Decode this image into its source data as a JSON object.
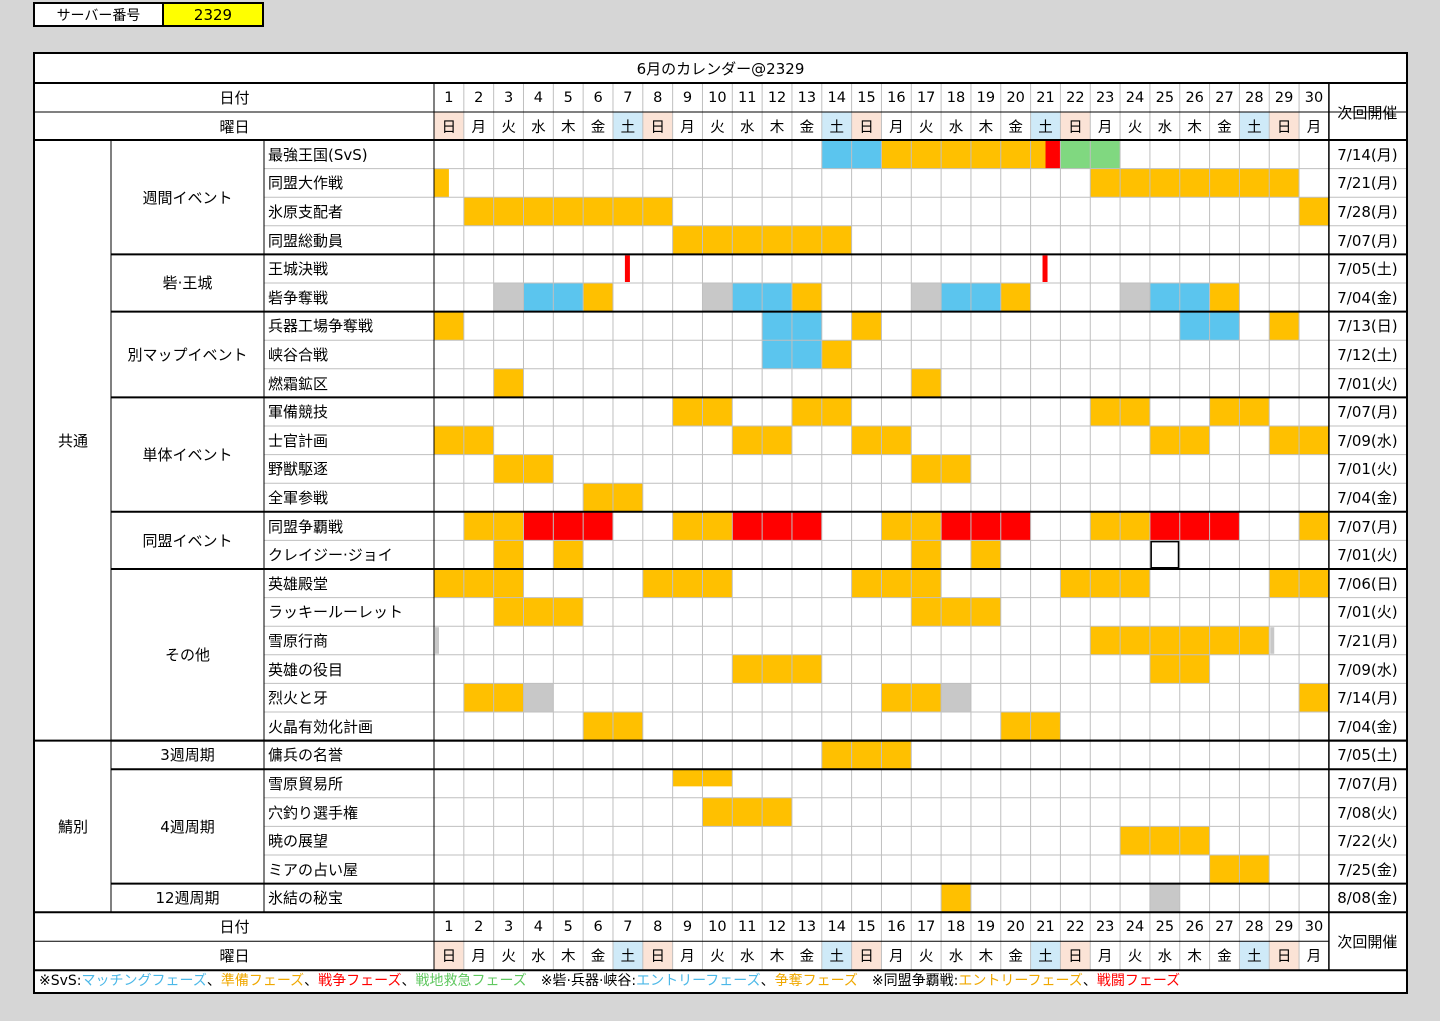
{
  "server": {
    "label": "サーバー番号",
    "value": "2329"
  },
  "title": "6月のカレンダー@2329",
  "headers": {
    "date": "日付",
    "weekday": "曜日",
    "next": "次回開催"
  },
  "days": [
    "1",
    "2",
    "3",
    "4",
    "5",
    "6",
    "7",
    "8",
    "9",
    "10",
    "11",
    "12",
    "13",
    "14",
    "15",
    "16",
    "17",
    "18",
    "19",
    "20",
    "21",
    "22",
    "23",
    "24",
    "25",
    "26",
    "27",
    "28",
    "29",
    "30"
  ],
  "weekdays": [
    "日",
    "月",
    "火",
    "水",
    "木",
    "金",
    "土",
    "日",
    "月",
    "火",
    "水",
    "木",
    "金",
    "土",
    "日",
    "月",
    "火",
    "水",
    "木",
    "金",
    "土",
    "日",
    "月",
    "火",
    "水",
    "木",
    "金",
    "土",
    "日",
    "月"
  ],
  "colors": {
    "orange": "#ffc000",
    "blue": "#5bc5ee",
    "red": "#ff0000",
    "green": "#80d880",
    "gray": "#c8c8c8",
    "sun": "#fbe3d6",
    "sat": "#cfeaf8",
    "border": "#000000",
    "light_border": "#bfbfbf"
  },
  "groups": [
    {
      "label": "共通",
      "start": 0,
      "span": 21
    },
    {
      "label": "鯖別",
      "start": 21,
      "span": 6
    }
  ],
  "categories": [
    {
      "label": "週間イベント",
      "start": 0,
      "span": 4
    },
    {
      "label": "砦·王城",
      "start": 4,
      "span": 2
    },
    {
      "label": "別マップイベント",
      "start": 6,
      "span": 3
    },
    {
      "label": "単体イベント",
      "start": 9,
      "span": 4
    },
    {
      "label": "同盟イベント",
      "start": 13,
      "span": 2
    },
    {
      "label": "その他",
      "start": 15,
      "span": 6
    },
    {
      "label": "3週周期",
      "start": 21,
      "span": 1
    },
    {
      "label": "4週周期",
      "start": 22,
      "span": 4
    },
    {
      "label": "12週周期",
      "start": 26,
      "span": 1
    }
  ],
  "events": [
    {
      "name": "最強王国(SvS)",
      "next": "7/14(月)",
      "marks": [
        [
          14,
          15,
          "blue"
        ],
        [
          16,
          21,
          "orange"
        ],
        [
          21,
          21,
          "red",
          "right-third"
        ],
        [
          22,
          23,
          "green"
        ]
      ]
    },
    {
      "name": "同盟大作戦",
      "next": "7/21(月)",
      "marks": [
        [
          1,
          1,
          "orange",
          "half"
        ],
        [
          23,
          29,
          "orange"
        ]
      ]
    },
    {
      "name": "氷原支配者",
      "next": "7/28(月)",
      "marks": [
        [
          2,
          8,
          "orange"
        ],
        [
          30,
          30,
          "orange"
        ]
      ]
    },
    {
      "name": "同盟総動員",
      "next": "7/07(月)",
      "marks": [
        [
          9,
          14,
          "orange"
        ]
      ]
    },
    {
      "name": "王城決戦",
      "next": "7/05(土)",
      "marks": [
        [
          7,
          7,
          "red",
          "sliver"
        ],
        [
          21,
          21,
          "red",
          "sliver"
        ]
      ]
    },
    {
      "name": "砦争奪戦",
      "next": "7/04(金)",
      "marks": [
        [
          3,
          3,
          "gray"
        ],
        [
          4,
          5,
          "blue"
        ],
        [
          6,
          6,
          "orange"
        ],
        [
          10,
          10,
          "gray"
        ],
        [
          11,
          12,
          "blue"
        ],
        [
          13,
          13,
          "orange"
        ],
        [
          17,
          17,
          "gray"
        ],
        [
          18,
          19,
          "blue"
        ],
        [
          20,
          20,
          "orange"
        ],
        [
          24,
          24,
          "gray"
        ],
        [
          25,
          26,
          "blue"
        ],
        [
          27,
          27,
          "orange"
        ]
      ]
    },
    {
      "name": "兵器工場争奪戦",
      "next": "7/13(日)",
      "marks": [
        [
          1,
          1,
          "orange"
        ],
        [
          12,
          13,
          "blue"
        ],
        [
          15,
          15,
          "orange"
        ],
        [
          26,
          27,
          "blue"
        ],
        [
          29,
          29,
          "orange"
        ]
      ]
    },
    {
      "name": "峡谷合戦",
      "next": "7/12(土)",
      "marks": [
        [
          12,
          13,
          "blue"
        ],
        [
          14,
          14,
          "orange"
        ]
      ]
    },
    {
      "name": "燃霜鉱区",
      "next": "7/01(火)",
      "marks": [
        [
          3,
          3,
          "orange"
        ],
        [
          17,
          17,
          "orange"
        ]
      ]
    },
    {
      "name": "軍備競技",
      "next": "7/07(月)",
      "marks": [
        [
          9,
          10,
          "orange"
        ],
        [
          13,
          14,
          "orange"
        ],
        [
          23,
          24,
          "orange"
        ],
        [
          27,
          28,
          "orange"
        ]
      ]
    },
    {
      "name": "士官計画",
      "next": "7/09(水)",
      "marks": [
        [
          1,
          2,
          "orange"
        ],
        [
          11,
          12,
          "orange"
        ],
        [
          15,
          16,
          "orange"
        ],
        [
          25,
          26,
          "orange"
        ],
        [
          29,
          30,
          "orange"
        ]
      ]
    },
    {
      "name": "野獣駆逐",
      "next": "7/01(火)",
      "marks": [
        [
          3,
          4,
          "orange"
        ],
        [
          17,
          18,
          "orange"
        ]
      ]
    },
    {
      "name": "全軍参戦",
      "next": "7/04(金)",
      "marks": [
        [
          6,
          7,
          "orange"
        ]
      ]
    },
    {
      "name": "同盟争覇戦",
      "next": "7/07(月)",
      "marks": [
        [
          2,
          3,
          "orange"
        ],
        [
          4,
          6,
          "red"
        ],
        [
          9,
          10,
          "orange"
        ],
        [
          11,
          13,
          "red"
        ],
        [
          16,
          17,
          "orange"
        ],
        [
          18,
          20,
          "red"
        ],
        [
          23,
          24,
          "orange"
        ],
        [
          25,
          27,
          "red"
        ],
        [
          30,
          30,
          "orange"
        ]
      ]
    },
    {
      "name": "クレイジー·ジョイ",
      "next": "7/01(火)",
      "marks": [
        [
          3,
          3,
          "orange"
        ],
        [
          5,
          5,
          "orange"
        ],
        [
          17,
          17,
          "orange"
        ],
        [
          19,
          19,
          "orange"
        ],
        [
          25,
          25,
          "box"
        ]
      ]
    },
    {
      "name": "英雄殿堂",
      "next": "7/06(日)",
      "marks": [
        [
          1,
          3,
          "orange"
        ],
        [
          8,
          10,
          "orange"
        ],
        [
          15,
          17,
          "orange"
        ],
        [
          22,
          24,
          "orange"
        ],
        [
          29,
          30,
          "orange"
        ]
      ]
    },
    {
      "name": "ラッキールーレット",
      "next": "7/01(火)",
      "marks": [
        [
          3,
          5,
          "orange"
        ],
        [
          17,
          19,
          "orange"
        ]
      ]
    },
    {
      "name": "雪原行商",
      "next": "7/21(月)",
      "marks": [
        [
          1,
          1,
          "gray",
          "sliver-left"
        ],
        [
          23,
          28,
          "orange"
        ],
        [
          29,
          29,
          "gray",
          "sliver-left"
        ]
      ]
    },
    {
      "name": "英雄の役目",
      "next": "7/09(水)",
      "marks": [
        [
          11,
          13,
          "orange"
        ],
        [
          25,
          26,
          "orange"
        ]
      ]
    },
    {
      "name": "烈火と牙",
      "next": "7/14(月)",
      "marks": [
        [
          2,
          3,
          "orange"
        ],
        [
          4,
          4,
          "gray"
        ],
        [
          16,
          17,
          "orange"
        ],
        [
          18,
          18,
          "gray"
        ],
        [
          30,
          30,
          "orange"
        ]
      ]
    },
    {
      "name": "火晶有効化計画",
      "next": "7/04(金)",
      "marks": [
        [
          6,
          7,
          "orange"
        ],
        [
          20,
          21,
          "orange"
        ]
      ]
    },
    {
      "name": "傭兵の名誉",
      "next": "7/05(土)",
      "marks": [
        [
          14,
          16,
          "orange"
        ]
      ]
    },
    {
      "name": "雪原貿易所",
      "next": "7/07(月)",
      "marks": [
        [
          9,
          10,
          "orange",
          "half-top"
        ]
      ]
    },
    {
      "name": "穴釣り選手権",
      "next": "7/08(火)",
      "marks": [
        [
          10,
          12,
          "orange"
        ]
      ]
    },
    {
      "name": "暁の展望",
      "next": "7/22(火)",
      "marks": [
        [
          24,
          26,
          "orange"
        ]
      ]
    },
    {
      "name": "ミアの占い屋",
      "next": "7/25(金)",
      "marks": [
        [
          27,
          28,
          "orange"
        ]
      ]
    },
    {
      "name": "氷結の秘宝",
      "next": "8/08(金)",
      "marks": [
        [
          18,
          18,
          "orange"
        ],
        [
          25,
          25,
          "gray"
        ]
      ]
    }
  ],
  "legend": [
    {
      "text": "※SvS:",
      "color": "#000000"
    },
    {
      "text": "マッチングフェーズ",
      "color": "#4bb8e8"
    },
    {
      "text": "、",
      "color": "#000000"
    },
    {
      "text": "準備フェーズ",
      "color": "#f0a800"
    },
    {
      "text": "、",
      "color": "#000000"
    },
    {
      "text": "戦争フェーズ",
      "color": "#ff0000"
    },
    {
      "text": "、",
      "color": "#000000"
    },
    {
      "text": "戦地救急フェーズ",
      "color": "#60c860"
    },
    {
      "text": "　※砦·兵器·峡谷:",
      "color": "#000000"
    },
    {
      "text": "エントリーフェーズ",
      "color": "#4bb8e8"
    },
    {
      "text": "、",
      "color": "#000000"
    },
    {
      "text": "争奪フェーズ",
      "color": "#f0a800"
    },
    {
      "text": "　※同盟争覇戦:",
      "color": "#000000"
    },
    {
      "text": "エントリーフェーズ",
      "color": "#f0a800"
    },
    {
      "text": "、",
      "color": "#000000"
    },
    {
      "text": "戦闘フェーズ",
      "color": "#ff0000"
    }
  ]
}
